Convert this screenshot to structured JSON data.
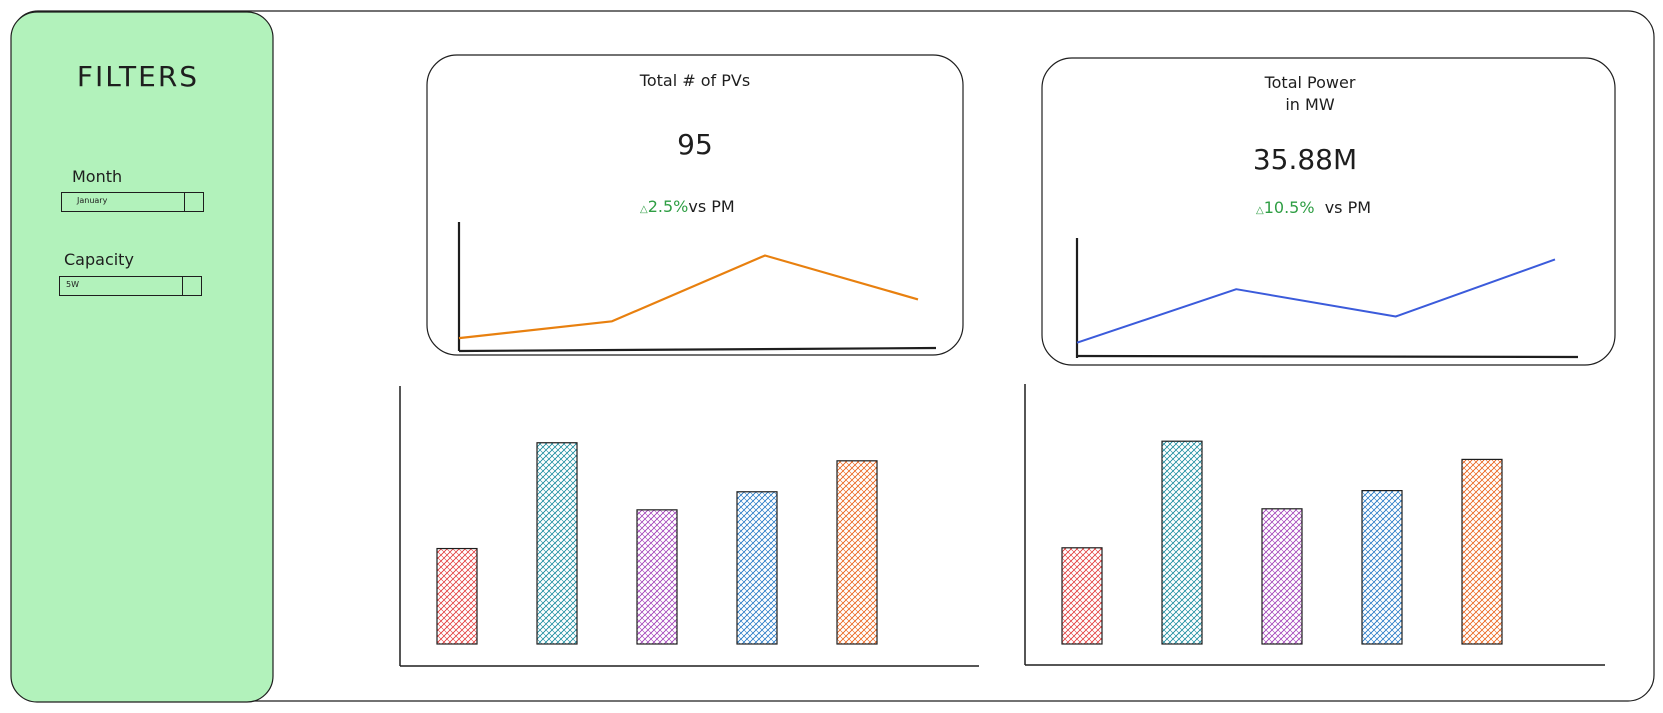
{
  "filters": {
    "title": "FILTERS",
    "month": {
      "label": "Month",
      "value": "January"
    },
    "capacity": {
      "label": "Capacity",
      "value": "5W"
    }
  },
  "kpis": [
    {
      "title": "Total # of PVs",
      "value": "95",
      "delta_pct": "2.5%",
      "delta_suffix": "vs PM",
      "line_color": "#e8800f",
      "trend": [
        0.1,
        0.23,
        0.74,
        0.4
      ]
    },
    {
      "title_line1": "Total Power",
      "title_line2": "in MW",
      "value": "35.88M",
      "delta_pct": "10.5%",
      "delta_suffix": "vs PM",
      "line_color": "#3b5bdb",
      "trend": [
        0.12,
        0.57,
        0.34,
        0.82
      ]
    }
  ],
  "bar_charts": [
    {
      "values": [
        0.37,
        0.78,
        0.52,
        0.59,
        0.71
      ]
    },
    {
      "values": [
        0.37,
        0.78,
        0.52,
        0.59,
        0.71
      ]
    }
  ],
  "colors": {
    "filter_panel": "#b2f2bb",
    "delta_green": "#2f9e44",
    "bars": [
      "#e03131",
      "#0c8599",
      "#9c36b5",
      "#1971c2",
      "#e8590c"
    ]
  }
}
